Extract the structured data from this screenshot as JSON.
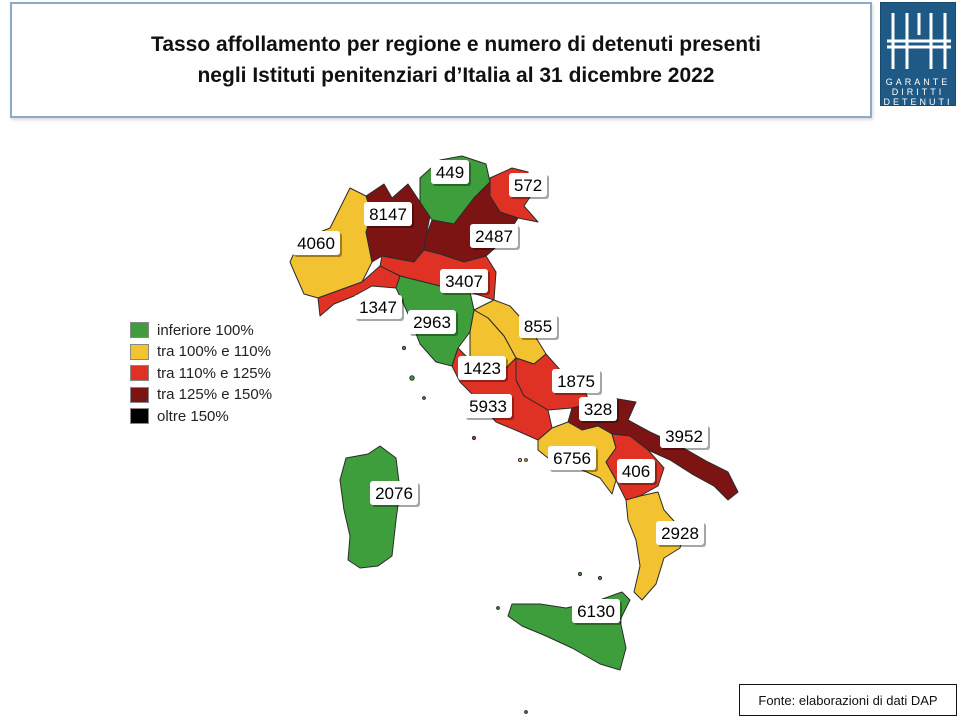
{
  "title": {
    "line1": "Tasso affollamento per regione e numero di detenuti presenti",
    "line2": "negli Istituti penitenziari d’Italia al 31 dicembre 2022"
  },
  "logo": {
    "row1": "GARANTE",
    "row2": "DIRITTI",
    "row3": "DETENUTI"
  },
  "legend": {
    "items": [
      {
        "label": "inferiore 100%",
        "color": "#3f9e3c"
      },
      {
        "label": "tra 100% e 110%",
        "color": "#f2c230"
      },
      {
        "label": "tra 110% e 125%",
        "color": "#e03224"
      },
      {
        "label": "tra 125% e 150%",
        "color": "#7d1414"
      },
      {
        "label": "oltre 150%",
        "color": "#000000"
      }
    ]
  },
  "regions": [
    {
      "name": "Valle d'Aosta / Piemonte",
      "detenuti": "4060",
      "class": "tra 100% e 110%",
      "color": "#f2c230"
    },
    {
      "name": "Lombardia",
      "detenuti": "8147",
      "class": "tra 125% e 150%",
      "color": "#7d1414"
    },
    {
      "name": "Trentino-Alto Adige",
      "detenuti": "449",
      "class": "inferiore 100%",
      "color": "#3f9e3c"
    },
    {
      "name": "Friuli-Venezia Giulia",
      "detenuti": "572",
      "class": "tra 110% e 125%",
      "color": "#e03224"
    },
    {
      "name": "Veneto",
      "detenuti": "2487",
      "class": "tra 125% e 150%",
      "color": "#7d1414"
    },
    {
      "name": "Emilia-Romagna",
      "detenuti": "3407",
      "class": "tra 110% e 125%",
      "color": "#e03224"
    },
    {
      "name": "Liguria",
      "detenuti": "1347",
      "class": "tra 110% e 125%",
      "color": "#e03224"
    },
    {
      "name": "Toscana",
      "detenuti": "2963",
      "class": "inferiore 100%",
      "color": "#3f9e3c"
    },
    {
      "name": "Marche",
      "detenuti": "855",
      "class": "tra 100% e 110%",
      "color": "#f2c230"
    },
    {
      "name": "Umbria",
      "detenuti": "1423",
      "class": "tra 100% e 110%",
      "color": "#f2c230"
    },
    {
      "name": "Abruzzo",
      "detenuti": "1875",
      "class": "tra 110% e 125%",
      "color": "#e03224"
    },
    {
      "name": "Lazio",
      "detenuti": "5933",
      "class": "tra 110% e 125%",
      "color": "#e03224"
    },
    {
      "name": "Molise",
      "detenuti": "328",
      "class": "tra 125% e 150%",
      "color": "#7d1414"
    },
    {
      "name": "Puglia",
      "detenuti": "3952",
      "class": "tra 125% e 150%",
      "color": "#7d1414"
    },
    {
      "name": "Campania",
      "detenuti": "6756",
      "class": "tra 100% e 110%",
      "color": "#f2c230"
    },
    {
      "name": "Basilicata",
      "detenuti": "406",
      "class": "tra 110% e 125%",
      "color": "#e03224"
    },
    {
      "name": "Calabria",
      "detenuti": "2928",
      "class": "tra 100% e 110%",
      "color": "#f2c230"
    },
    {
      "name": "Sicilia",
      "detenuti": "6130",
      "class": "inferiore 100%",
      "color": "#3f9e3c"
    },
    {
      "name": "Sardegna",
      "detenuti": "2076",
      "class": "inferiore 100%",
      "color": "#3f9e3c"
    }
  ],
  "source": "Fonte: elaborazioni di dati DAP"
}
